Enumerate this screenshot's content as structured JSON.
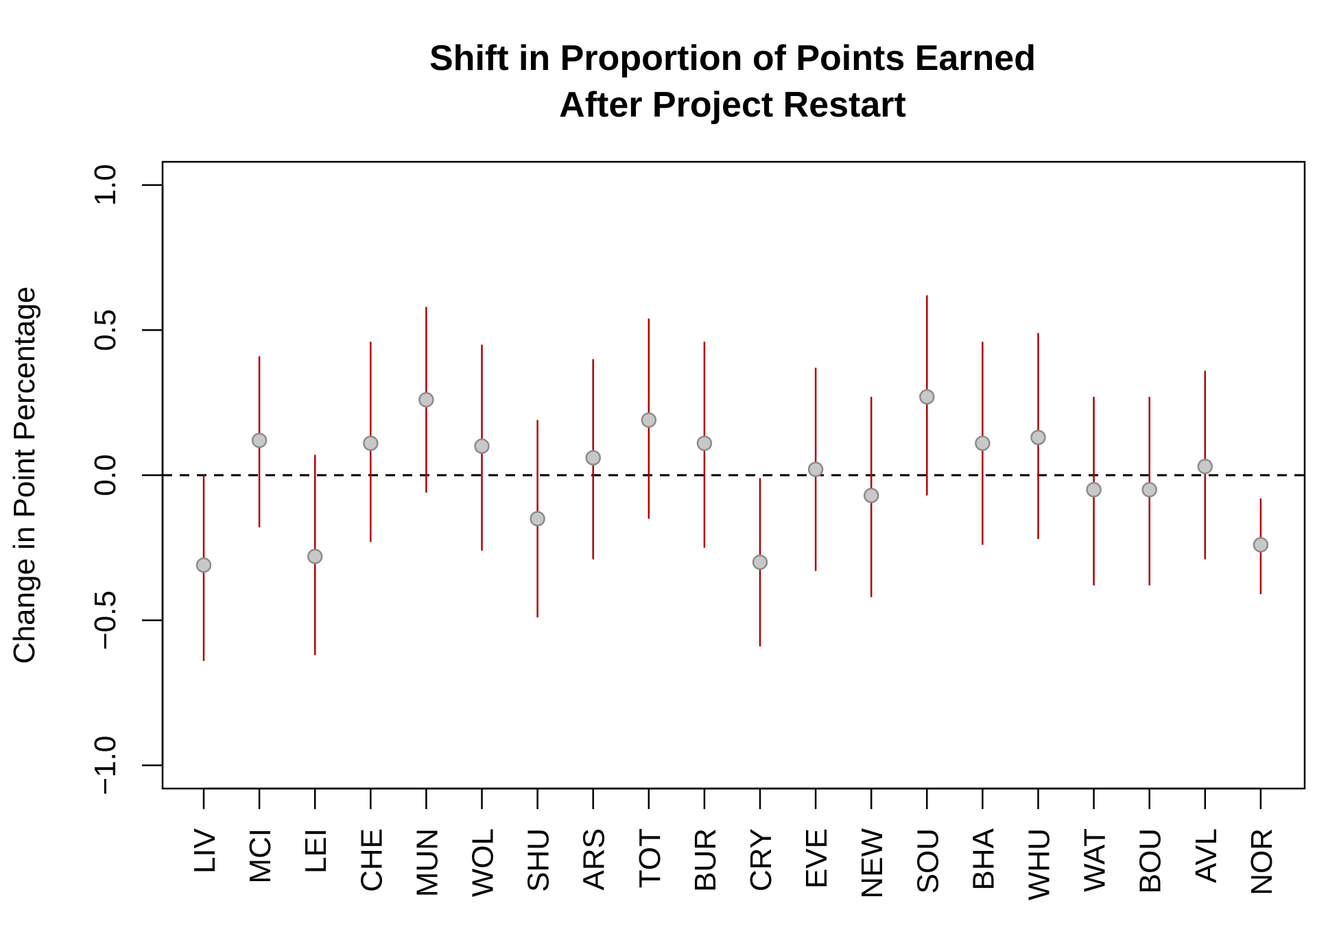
{
  "chart_data": {
    "type": "scatter",
    "title": "Shift in Proportion of Points Earned",
    "subtitle": "After Project Restart",
    "xlabel": "",
    "ylabel": "Change in Point Percentage",
    "ylim": [
      -1.08,
      1.08
    ],
    "yticks": [
      -1.0,
      -0.5,
      0.0,
      0.5,
      1.0
    ],
    "ytick_labels": [
      "−1.0",
      "−0.5",
      "0.0",
      "0.5",
      "1.0"
    ],
    "reference_line": 0.0,
    "grid": false,
    "legend": "none",
    "categories": [
      "LIV",
      "MCI",
      "LEI",
      "CHE",
      "MUN",
      "WOL",
      "SHU",
      "ARS",
      "TOT",
      "BUR",
      "CRY",
      "EVE",
      "NEW",
      "SOU",
      "BHA",
      "WHU",
      "WAT",
      "BOU",
      "AVL",
      "NOR"
    ],
    "values": [
      -0.31,
      0.12,
      -0.28,
      0.11,
      0.26,
      0.1,
      -0.15,
      0.06,
      0.19,
      0.11,
      -0.3,
      0.02,
      -0.07,
      0.27,
      0.11,
      0.13,
      -0.05,
      -0.05,
      0.03,
      -0.24
    ],
    "lower": [
      -0.64,
      -0.18,
      -0.62,
      -0.23,
      -0.06,
      -0.26,
      -0.49,
      -0.29,
      -0.15,
      -0.25,
      -0.59,
      -0.33,
      -0.42,
      -0.07,
      -0.24,
      -0.22,
      -0.38,
      -0.38,
      -0.29,
      -0.41
    ],
    "upper": [
      0.0,
      0.41,
      0.07,
      0.46,
      0.58,
      0.45,
      0.19,
      0.4,
      0.54,
      0.46,
      -0.01,
      0.37,
      0.27,
      0.62,
      0.46,
      0.49,
      0.27,
      0.27,
      0.36,
      -0.08
    ],
    "colors": {
      "interval": "#b30000",
      "point_fill": "#c8c8c8",
      "point_stroke": "#8c8c8c",
      "reference_line": "#000000",
      "axis": "#000000"
    }
  }
}
